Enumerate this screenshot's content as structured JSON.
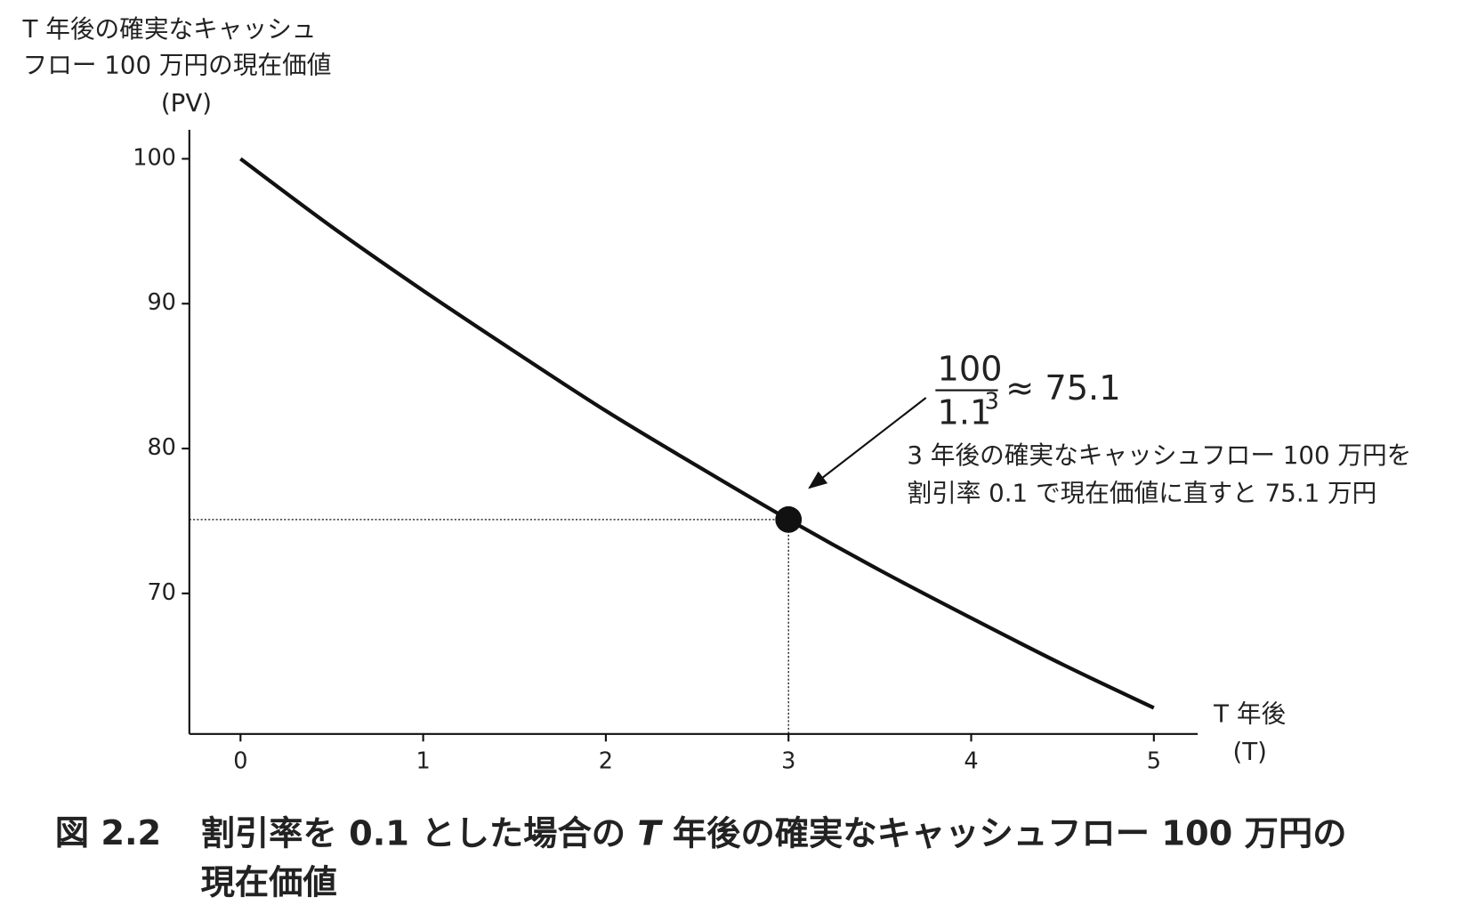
{
  "chart_data": {
    "type": "line",
    "y_label": [
      "T 年後の確実なキャッシュ",
      "フロー 100 万円の現在価値",
      "(PV)"
    ],
    "x_label": [
      "T 年後",
      "(T)"
    ],
    "x": [
      0,
      0.5,
      1,
      1.5,
      2,
      2.5,
      3,
      3.5,
      4,
      4.5,
      5
    ],
    "series": [
      {
        "color": "#111111",
        "values": [
          100,
          95.3,
          90.9,
          86.7,
          82.6,
          78.8,
          75.1,
          71.6,
          68.3,
          65.1,
          62.1
        ]
      }
    ],
    "xlim": [
      -0.28,
      5.24
    ],
    "xticks": [
      0,
      1,
      2,
      3,
      4,
      5
    ],
    "ylim": [
      60.3,
      102
    ],
    "yticks": [
      70,
      80,
      90,
      100
    ],
    "highlight": {
      "x": 3,
      "y": 75.1
    },
    "annotation": {
      "numerator": "100",
      "denominator": "1.1",
      "exponent": "3",
      "result": "≈ 75.1",
      "lines": [
        "3 年後の確実なキャッシュフロー 100 万円を",
        "割引率 0.1 で現在価値に直すと 75.1 万円"
      ]
    },
    "caption": {
      "label": "図 2.2",
      "parts": [
        "割引率を 0.1 とした場合の ",
        "T",
        " 年後の確実なキャッシュフロー 100 万円の"
      ],
      "line2": "現在価値"
    }
  }
}
